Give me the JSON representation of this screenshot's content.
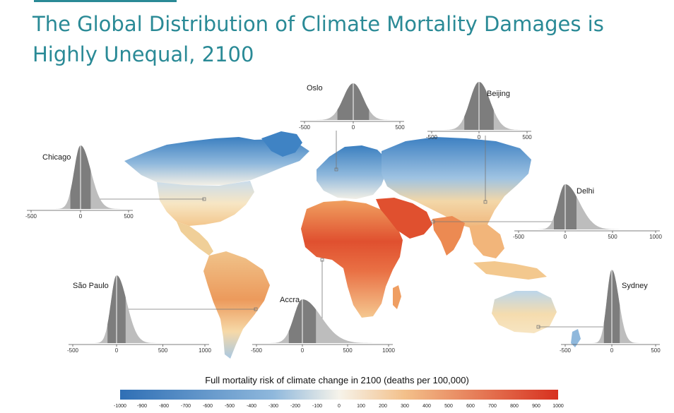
{
  "title": "The Global Distribution of Climate Mortality Damages is Highly Unequal, 2100",
  "colors": {
    "title": "#2a8a96",
    "scale_low": "#2f6fb5",
    "scale_mid": "#f6f3ea",
    "scale_high": "#d7301f"
  },
  "map": {
    "legend_title": "Full mortality risk of climate change in 2100 (deaths per 100,000)",
    "scale_ticks": [
      "-1000",
      "-900",
      "-800",
      "-700",
      "-600",
      "-500",
      "-400",
      "-300",
      "-200",
      "-100",
      "0",
      "100",
      "200",
      "300",
      "400",
      "500",
      "600",
      "700",
      "800",
      "900",
      "1000"
    ]
  },
  "insets": [
    {
      "city": "Oslo",
      "ticks": [
        "-500",
        "0",
        "500"
      ]
    },
    {
      "city": "Beijing",
      "ticks": [
        "-500",
        "0",
        "500"
      ]
    },
    {
      "city": "Chicago",
      "ticks": [
        "-500",
        "0",
        "500"
      ]
    },
    {
      "city": "Delhi",
      "ticks": [
        "-500",
        "0",
        "500",
        "1000"
      ]
    },
    {
      "city": "São Paulo",
      "ticks": [
        "-500",
        "0",
        "500",
        "1000"
      ]
    },
    {
      "city": "Accra",
      "ticks": [
        "-500",
        "0",
        "500",
        "1000"
      ]
    },
    {
      "city": "Sydney",
      "ticks": [
        "-500",
        "0",
        "500"
      ]
    }
  ]
}
